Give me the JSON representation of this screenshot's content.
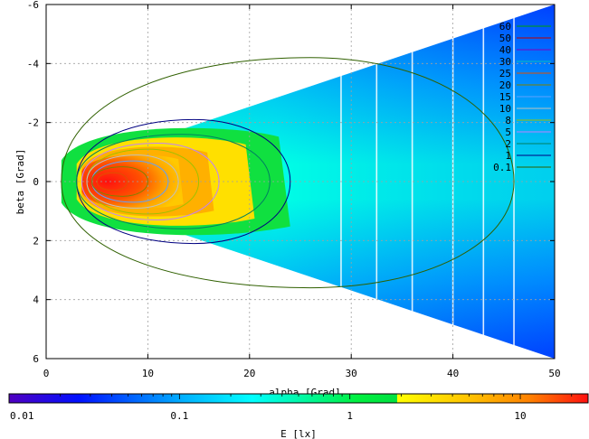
{
  "chart_data": {
    "type": "heatmap",
    "title": "",
    "xlabel": "alpha [Grad]",
    "ylabel": "beta [Grad]",
    "xlim": [
      0,
      50
    ],
    "ylim": [
      6,
      -6
    ],
    "x_ticks": [
      "0",
      "10",
      "20",
      "30",
      "40",
      "50"
    ],
    "y_ticks": [
      "-6",
      "-4",
      "-2",
      "0",
      "2",
      "4",
      "6"
    ],
    "grid": true,
    "legend_placement": "top-right",
    "colorbar": {
      "label": "E [lx]",
      "scale": "log",
      "range": [
        0.01,
        25
      ],
      "ticks": [
        "0.01",
        "0.1",
        "1",
        "10"
      ]
    },
    "contour_levels": [
      "60",
      "50",
      "40",
      "30",
      "25",
      "20",
      "15",
      "10",
      "8",
      "5",
      "2",
      "1",
      "0.1"
    ],
    "contour_colors": [
      "#00a000",
      "#c00000",
      "#8000c0",
      "#00c0c0",
      "#e05000",
      "#808000",
      "#60a0ff",
      "#c0c0c0",
      "#a0c000",
      "#c080ff",
      "#008060",
      "#000080",
      "#306000"
    ],
    "series": [
      {
        "name": "0.1",
        "peak_alpha": 6,
        "alpha_extent": [
          1.5,
          46
        ],
        "beta_extent": [
          -4.2,
          3.6
        ]
      },
      {
        "name": "1",
        "peak_alpha": 6,
        "alpha_extent": [
          3,
          24
        ],
        "beta_extent": [
          -2.1,
          2.1
        ]
      },
      {
        "name": "2",
        "peak_alpha": 6,
        "alpha_extent": [
          3,
          22
        ],
        "beta_extent": [
          -1.6,
          1.6
        ]
      },
      {
        "name": "5",
        "peak_alpha": 6,
        "alpha_extent": [
          3.5,
          17
        ],
        "beta_extent": [
          -1.3,
          1.3
        ]
      },
      {
        "name": "8",
        "peak_alpha": 6,
        "alpha_extent": [
          4,
          15
        ],
        "beta_extent": [
          -1.1,
          1.1
        ]
      },
      {
        "name": "10",
        "peak_alpha": 6,
        "alpha_extent": [
          4,
          13
        ],
        "beta_extent": [
          -0.9,
          0.9
        ]
      },
      {
        "name": "15",
        "peak_alpha": 6,
        "alpha_extent": [
          4.5,
          12
        ],
        "beta_extent": [
          -0.7,
          0.7
        ]
      },
      {
        "name": "20",
        "peak_alpha": 6,
        "alpha_extent": [
          4.5,
          10
        ],
        "beta_extent": [
          -0.5,
          0.5
        ]
      },
      {
        "name": "25",
        "peak_alpha": 6,
        "alpha_extent": [
          5,
          8
        ],
        "beta_extent": [
          -0.3,
          0.3
        ]
      }
    ],
    "colors": {
      "max": "#ff1010",
      "high": "#ffc000",
      "mid": "#10e040",
      "low_mid": "#00ffff",
      "low": "#0030ff"
    }
  }
}
